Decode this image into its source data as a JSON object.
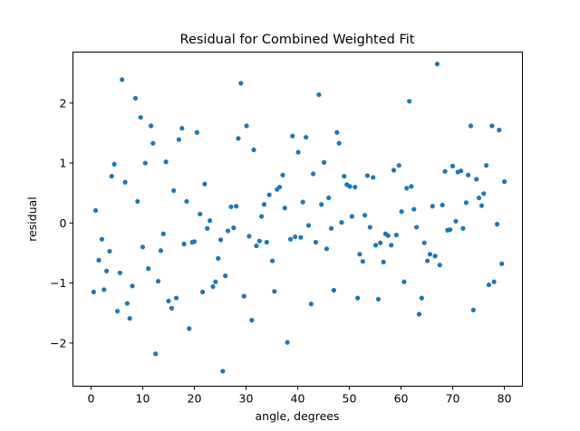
{
  "chart_data": {
    "type": "scatter",
    "title": "Residual for Combined Weighted Fit",
    "xlabel": "angle, degrees",
    "ylabel": "residual",
    "xlim": [
      -3.5,
      83.5
    ],
    "ylim": [
      -2.72,
      2.85
    ],
    "xticks": [
      0,
      10,
      20,
      30,
      40,
      50,
      60,
      70,
      80
    ],
    "yticks": [
      -2,
      -1,
      0,
      1,
      2
    ],
    "xtick_labels": [
      "0",
      "10",
      "20",
      "30",
      "40",
      "50",
      "60",
      "70",
      "80"
    ],
    "ytick_labels": [
      "−2",
      "−1",
      "0",
      "1",
      "2"
    ],
    "grid": false,
    "legend": "none",
    "color": "#1f77b4",
    "points": [
      [
        0.5,
        -1.15
      ],
      [
        0.9,
        0.21
      ],
      [
        1.5,
        -0.62
      ],
      [
        2.1,
        -0.27
      ],
      [
        2.5,
        -1.11
      ],
      [
        3.0,
        -0.8
      ],
      [
        3.6,
        -0.47
      ],
      [
        4.0,
        0.78
      ],
      [
        4.5,
        0.98
      ],
      [
        5.1,
        -1.47
      ],
      [
        5.6,
        -0.83
      ],
      [
        6.0,
        2.39
      ],
      [
        6.6,
        0.68
      ],
      [
        7.0,
        -1.34
      ],
      [
        7.5,
        -1.59
      ],
      [
        8.0,
        -1.05
      ],
      [
        8.6,
        2.08
      ],
      [
        9.0,
        0.36
      ],
      [
        9.6,
        1.76
      ],
      [
        10.0,
        -0.4
      ],
      [
        10.5,
        1.0
      ],
      [
        11.1,
        -0.76
      ],
      [
        11.6,
        1.62
      ],
      [
        12.0,
        1.33
      ],
      [
        12.5,
        -2.18
      ],
      [
        13.0,
        -0.97
      ],
      [
        13.5,
        -0.46
      ],
      [
        14.0,
        -0.18
      ],
      [
        14.5,
        1.02
      ],
      [
        15.0,
        -1.3
      ],
      [
        15.6,
        -1.42
      ],
      [
        16.0,
        0.54
      ],
      [
        16.5,
        -1.25
      ],
      [
        17.0,
        1.39
      ],
      [
        17.6,
        1.58
      ],
      [
        18.0,
        -0.35
      ],
      [
        18.5,
        0.36
      ],
      [
        19.0,
        -1.76
      ],
      [
        19.6,
        -0.32
      ],
      [
        20.0,
        -0.31
      ],
      [
        20.5,
        1.51
      ],
      [
        21.1,
        0.15
      ],
      [
        21.6,
        -1.15
      ],
      [
        22.0,
        0.65
      ],
      [
        22.5,
        -0.09
      ],
      [
        23.0,
        0.04
      ],
      [
        23.6,
        -1.06
      ],
      [
        24.1,
        -0.98
      ],
      [
        24.6,
        -0.59
      ],
      [
        25.1,
        -0.28
      ],
      [
        25.5,
        -2.47
      ],
      [
        26.0,
        -0.88
      ],
      [
        26.5,
        -0.13
      ],
      [
        27.1,
        0.27
      ],
      [
        27.6,
        -0.08
      ],
      [
        28.1,
        0.28
      ],
      [
        28.5,
        1.41
      ],
      [
        29.0,
        2.33
      ],
      [
        29.6,
        -1.22
      ],
      [
        30.1,
        1.62
      ],
      [
        30.6,
        -0.22
      ],
      [
        31.1,
        -1.62
      ],
      [
        31.5,
        1.22
      ],
      [
        32.0,
        -0.38
      ],
      [
        32.6,
        -0.3
      ],
      [
        33.0,
        0.11
      ],
      [
        33.5,
        0.31
      ],
      [
        34.0,
        -0.32
      ],
      [
        34.5,
        0.47
      ],
      [
        35.1,
        -0.63
      ],
      [
        35.5,
        -1.14
      ],
      [
        36.0,
        0.56
      ],
      [
        36.5,
        0.6
      ],
      [
        37.1,
        0.8
      ],
      [
        37.5,
        0.25
      ],
      [
        38.0,
        -1.99
      ],
      [
        38.6,
        -0.27
      ],
      [
        39.0,
        1.45
      ],
      [
        39.5,
        -0.23
      ],
      [
        40.1,
        1.18
      ],
      [
        40.6,
        -0.24
      ],
      [
        41.0,
        0.35
      ],
      [
        41.6,
        1.43
      ],
      [
        42.1,
        -0.04
      ],
      [
        42.6,
        -1.35
      ],
      [
        43.0,
        0.82
      ],
      [
        43.5,
        -0.32
      ],
      [
        44.1,
        2.14
      ],
      [
        44.6,
        0.31
      ],
      [
        45.1,
        1.01
      ],
      [
        45.6,
        -0.43
      ],
      [
        46.0,
        0.42
      ],
      [
        46.5,
        -0.09
      ],
      [
        47.0,
        -1.12
      ],
      [
        47.6,
        1.51
      ],
      [
        48.0,
        1.33
      ],
      [
        48.5,
        0.01
      ],
      [
        49.0,
        0.78
      ],
      [
        49.5,
        0.64
      ],
      [
        50.1,
        0.61
      ],
      [
        50.5,
        0.11
      ],
      [
        51.1,
        0.6
      ],
      [
        51.6,
        -1.25
      ],
      [
        52.0,
        -0.52
      ],
      [
        52.6,
        -0.64
      ],
      [
        53.0,
        0.13
      ],
      [
        53.5,
        0.79
      ],
      [
        54.0,
        -0.07
      ],
      [
        54.6,
        0.76
      ],
      [
        55.1,
        -0.37
      ],
      [
        55.6,
        -1.27
      ],
      [
        56.0,
        -0.33
      ],
      [
        56.6,
        -0.65
      ],
      [
        57.0,
        -0.18
      ],
      [
        57.5,
        -0.21
      ],
      [
        58.1,
        -0.37
      ],
      [
        58.6,
        0.88
      ],
      [
        59.1,
        -0.2
      ],
      [
        59.6,
        0.96
      ],
      [
        60.1,
        0.19
      ],
      [
        60.6,
        -0.98
      ],
      [
        61.1,
        0.58
      ],
      [
        61.6,
        2.03
      ],
      [
        62.0,
        0.61
      ],
      [
        62.5,
        0.23
      ],
      [
        63.0,
        -0.07
      ],
      [
        63.5,
        -1.52
      ],
      [
        64.0,
        -1.25
      ],
      [
        64.5,
        -0.33
      ],
      [
        65.1,
        -0.63
      ],
      [
        65.6,
        -0.52
      ],
      [
        66.1,
        0.28
      ],
      [
        66.6,
        -0.55
      ],
      [
        67.0,
        2.65
      ],
      [
        67.5,
        -0.7
      ],
      [
        68.0,
        0.3
      ],
      [
        68.5,
        0.86
      ],
      [
        69.0,
        -0.12
      ],
      [
        69.5,
        -0.11
      ],
      [
        70.0,
        0.95
      ],
      [
        70.6,
        0.03
      ],
      [
        71.0,
        0.85
      ],
      [
        71.6,
        0.87
      ],
      [
        72.0,
        -0.09
      ],
      [
        72.6,
        0.34
      ],
      [
        73.0,
        0.8
      ],
      [
        73.5,
        1.62
      ],
      [
        74.0,
        -1.45
      ],
      [
        74.6,
        0.73
      ],
      [
        75.1,
        0.42
      ],
      [
        75.6,
        0.29
      ],
      [
        76.0,
        0.49
      ],
      [
        76.5,
        0.96
      ],
      [
        77.0,
        -1.03
      ],
      [
        77.6,
        1.62
      ],
      [
        78.0,
        -0.98
      ],
      [
        78.6,
        -0.02
      ],
      [
        79.0,
        1.55
      ],
      [
        79.5,
        -0.68
      ],
      [
        80.0,
        0.69
      ]
    ]
  }
}
